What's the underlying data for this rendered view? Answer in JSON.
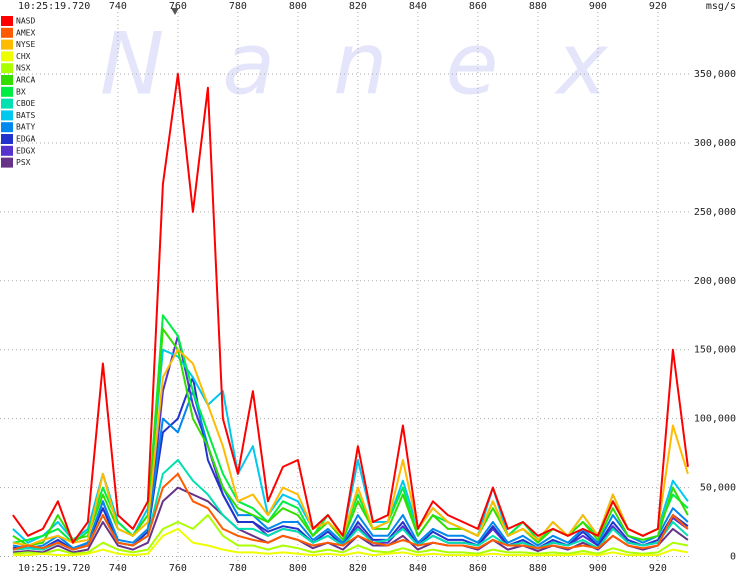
{
  "chart_data": {
    "type": "line",
    "watermark": "Nanex",
    "start_time": "10:25:19.720",
    "unit_label": "msg/s",
    "x": [
      705,
      710,
      715,
      720,
      725,
      730,
      735,
      740,
      745,
      750,
      755,
      760,
      765,
      770,
      775,
      780,
      785,
      790,
      795,
      800,
      805,
      810,
      815,
      820,
      825,
      830,
      835,
      840,
      845,
      850,
      855,
      860,
      865,
      870,
      875,
      880,
      885,
      890,
      895,
      900,
      905,
      910,
      915,
      920,
      925,
      930
    ],
    "xlim": [
      700.7,
      930.7
    ],
    "xticks": [
      740,
      760,
      780,
      800,
      820,
      840,
      860,
      880,
      900,
      920
    ],
    "ylim": [
      -4000,
      395000
    ],
    "yticks": [
      0,
      {
        "value": 50000,
        "label": "50,000"
      },
      {
        "value": 100000,
        "label": "100,000"
      },
      {
        "value": 150000,
        "label": "150,000"
      },
      {
        "value": 200000,
        "label": "200,000"
      },
      {
        "value": 250000,
        "label": "250,000"
      },
      {
        "value": 300000,
        "label": "300,000"
      },
      {
        "value": 350000,
        "label": "350,000"
      }
    ],
    "grid": true,
    "legend": "top-left",
    "series": [
      {
        "name": "NASD",
        "color": "#ff0000",
        "values": [
          30000,
          15000,
          20000,
          40000,
          10000,
          25000,
          140000,
          30000,
          20000,
          40000,
          270000,
          350000,
          250000,
          340000,
          100000,
          60000,
          120000,
          40000,
          65000,
          70000,
          20000,
          30000,
          15000,
          80000,
          25000,
          30000,
          95000,
          20000,
          40000,
          30000,
          25000,
          20000,
          50000,
          20000,
          25000,
          15000,
          20000,
          15000,
          20000,
          15000,
          40000,
          20000,
          15000,
          20000,
          150000,
          65000
        ]
      },
      {
        "name": "AMEX",
        "color": "#ff5a00",
        "values": [
          5000,
          8000,
          6000,
          10000,
          5000,
          8000,
          30000,
          10000,
          8000,
          15000,
          50000,
          60000,
          40000,
          35000,
          20000,
          15000,
          12000,
          10000,
          15000,
          12000,
          8000,
          10000,
          8000,
          15000,
          10000,
          8000,
          12000,
          8000,
          10000,
          8000,
          8000,
          6000,
          12000,
          8000,
          8000,
          6000,
          8000,
          6000,
          8000,
          6000,
          15000,
          8000,
          6000,
          8000,
          30000,
          20000
        ]
      },
      {
        "name": "NYSE",
        "color": "#ffbb00",
        "values": [
          10000,
          8000,
          12000,
          15000,
          10000,
          12000,
          60000,
          20000,
          15000,
          25000,
          130000,
          150000,
          140000,
          110000,
          80000,
          40000,
          45000,
          30000,
          50000,
          45000,
          20000,
          25000,
          15000,
          50000,
          20000,
          25000,
          70000,
          20000,
          35000,
          25000,
          20000,
          15000,
          40000,
          15000,
          20000,
          12000,
          25000,
          15000,
          30000,
          15000,
          45000,
          20000,
          15000,
          20000,
          95000,
          60000
        ]
      },
      {
        "name": "CHX",
        "color": "#eeff00",
        "values": [
          1000,
          1000,
          2000,
          1000,
          1000,
          2000,
          5000,
          2000,
          1000,
          2000,
          15000,
          20000,
          10000,
          8000,
          5000,
          3000,
          3000,
          2000,
          3000,
          2000,
          1000,
          2000,
          1000,
          3000,
          1000,
          2000,
          3000,
          1000,
          2000,
          1000,
          1000,
          1000,
          2000,
          1000,
          1000,
          1000,
          1000,
          1000,
          2000,
          1000,
          3000,
          1000,
          1000,
          1000,
          5000,
          3000
        ]
      },
      {
        "name": "NSX",
        "color": "#aaff00",
        "values": [
          2000,
          3000,
          2000,
          5000,
          2000,
          3000,
          10000,
          5000,
          3000,
          5000,
          20000,
          25000,
          20000,
          30000,
          15000,
          8000,
          8000,
          5000,
          8000,
          6000,
          3000,
          5000,
          3000,
          8000,
          4000,
          3000,
          6000,
          3000,
          5000,
          3000,
          3000,
          2000,
          5000,
          3000,
          3000,
          2000,
          3000,
          2000,
          4000,
          2000,
          6000,
          3000,
          2000,
          3000,
          10000,
          8000
        ]
      },
      {
        "name": "ARCA",
        "color": "#33dd00",
        "values": [
          15000,
          8000,
          10000,
          30000,
          12000,
          15000,
          45000,
          20000,
          15000,
          30000,
          165000,
          150000,
          100000,
          80000,
          50000,
          35000,
          30000,
          25000,
          35000,
          30000,
          15000,
          25000,
          12000,
          40000,
          20000,
          20000,
          45000,
          15000,
          30000,
          20000,
          20000,
          15000,
          35000,
          15000,
          20000,
          10000,
          20000,
          15000,
          25000,
          12000,
          35000,
          15000,
          12000,
          15000,
          50000,
          30000
        ]
      },
      {
        "name": "BX",
        "color": "#00ee44",
        "values": [
          10000,
          12000,
          15000,
          20000,
          10000,
          18000,
          50000,
          25000,
          15000,
          30000,
          175000,
          160000,
          120000,
          90000,
          60000,
          40000,
          35000,
          25000,
          40000,
          35000,
          15000,
          30000,
          15000,
          45000,
          20000,
          25000,
          50000,
          15000,
          30000,
          25000,
          20000,
          15000,
          40000,
          15000,
          25000,
          12000,
          20000,
          15000,
          25000,
          15000,
          40000,
          20000,
          15000,
          20000,
          45000,
          35000
        ]
      },
      {
        "name": "CBOE",
        "color": "#00e0b0",
        "values": [
          5000,
          6000,
          5000,
          10000,
          5000,
          8000,
          30000,
          10000,
          8000,
          15000,
          60000,
          70000,
          55000,
          45000,
          30000,
          20000,
          20000,
          15000,
          20000,
          18000,
          10000,
          15000,
          8000,
          20000,
          10000,
          12000,
          20000,
          8000,
          15000,
          10000,
          10000,
          8000,
          15000,
          8000,
          10000,
          6000,
          10000,
          8000,
          12000,
          6000,
          20000,
          10000,
          8000,
          10000,
          25000,
          15000
        ]
      },
      {
        "name": "BATS",
        "color": "#00c8ee",
        "values": [
          20000,
          10000,
          15000,
          25000,
          12000,
          20000,
          60000,
          25000,
          15000,
          35000,
          150000,
          145000,
          130000,
          110000,
          120000,
          60000,
          80000,
          30000,
          45000,
          40000,
          20000,
          30000,
          15000,
          70000,
          25000,
          25000,
          55000,
          20000,
          35000,
          25000,
          20000,
          15000,
          50000,
          15000,
          25000,
          12000,
          25000,
          15000,
          30000,
          15000,
          45000,
          20000,
          15000,
          20000,
          55000,
          40000
        ]
      },
      {
        "name": "BATY",
        "color": "#0088ee",
        "values": [
          8000,
          6000,
          8000,
          15000,
          6000,
          10000,
          40000,
          12000,
          10000,
          20000,
          100000,
          90000,
          120000,
          80000,
          50000,
          30000,
          30000,
          20000,
          25000,
          25000,
          12000,
          20000,
          10000,
          30000,
          15000,
          15000,
          30000,
          10000,
          20000,
          15000,
          15000,
          10000,
          25000,
          10000,
          15000,
          8000,
          15000,
          10000,
          20000,
          10000,
          30000,
          15000,
          10000,
          15000,
          35000,
          25000
        ]
      },
      {
        "name": "EDGA",
        "color": "#2233cc",
        "values": [
          6000,
          8000,
          6000,
          12000,
          5000,
          10000,
          35000,
          10000,
          8000,
          18000,
          90000,
          100000,
          130000,
          70000,
          45000,
          25000,
          25000,
          18000,
          22000,
          20000,
          10000,
          18000,
          8000,
          25000,
          12000,
          12000,
          25000,
          8000,
          18000,
          12000,
          12000,
          8000,
          22000,
          8000,
          12000,
          6000,
          12000,
          8000,
          18000,
          8000,
          25000,
          12000,
          8000,
          12000,
          30000,
          22000
        ]
      },
      {
        "name": "EDGX",
        "color": "#5533cc",
        "values": [
          5000,
          6000,
          5000,
          10000,
          5000,
          8000,
          40000,
          10000,
          8000,
          15000,
          120000,
          160000,
          110000,
          80000,
          45000,
          25000,
          25000,
          15000,
          20000,
          18000,
          10000,
          15000,
          8000,
          22000,
          10000,
          10000,
          22000,
          8000,
          15000,
          10000,
          10000,
          8000,
          20000,
          8000,
          10000,
          6000,
          10000,
          8000,
          15000,
          8000,
          22000,
          10000,
          8000,
          10000,
          28000,
          20000
        ]
      },
      {
        "name": "PSX",
        "color": "#663388",
        "values": [
          3000,
          4000,
          3000,
          8000,
          3000,
          5000,
          25000,
          8000,
          5000,
          10000,
          40000,
          50000,
          45000,
          40000,
          30000,
          20000,
          15000,
          10000,
          15000,
          12000,
          6000,
          10000,
          5000,
          15000,
          8000,
          8000,
          15000,
          5000,
          10000,
          8000,
          8000,
          5000,
          12000,
          5000,
          8000,
          4000,
          8000,
          5000,
          10000,
          5000,
          15000,
          8000,
          5000,
          8000,
          20000,
          12000
        ]
      }
    ]
  }
}
